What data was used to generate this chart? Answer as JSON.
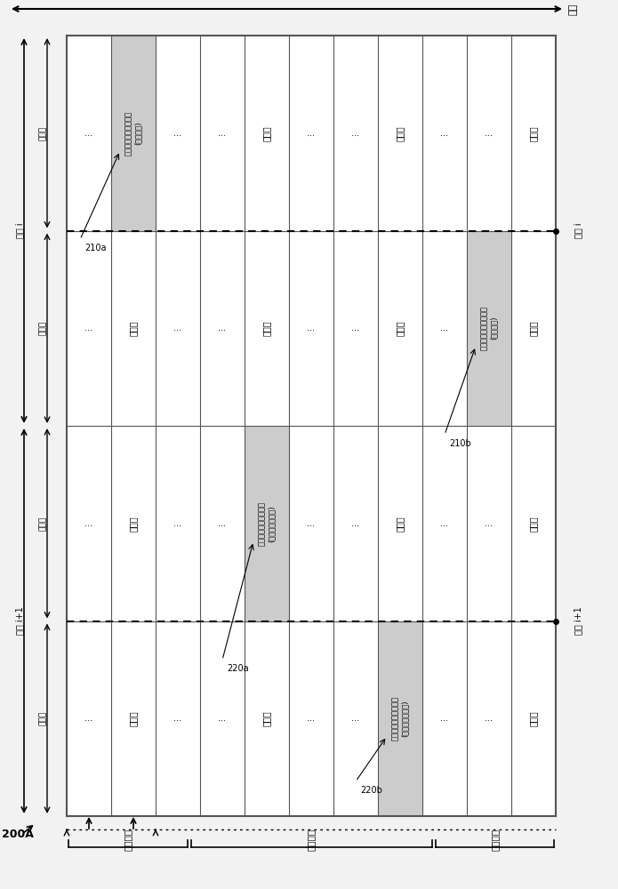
{
  "title": "200A",
  "time_label": "时间",
  "section_labels": [
    "控制区段",
    "数据区段",
    "控制区段"
  ],
  "subframe_i_label": "子帧 i",
  "subframe_i1_label": "子帧 i+1",
  "slot_left": "左时隙",
  "slot_right": "右时隙",
  "resource_block": "资源块",
  "dots": "...",
  "ann_210a_label": "210a",
  "ann_210a_text": "物理上行链路控制信道\n(控制信息)",
  "ann_210b_label": "210b",
  "ann_210b_text": "物理上行链路控制信道\n(控制信息)",
  "ann_220a_label": "220a",
  "ann_220a_text": "物理上行链路共享信道\n(数据和控制信息)",
  "ann_220b_label": "220b",
  "ann_220b_text": "物理上行链路共享信道\n(数据和控制信息)",
  "bg_color": "#f2f2f2",
  "grid_color": "#555555",
  "white": "#ffffff",
  "gray_fill": "#cccccc"
}
